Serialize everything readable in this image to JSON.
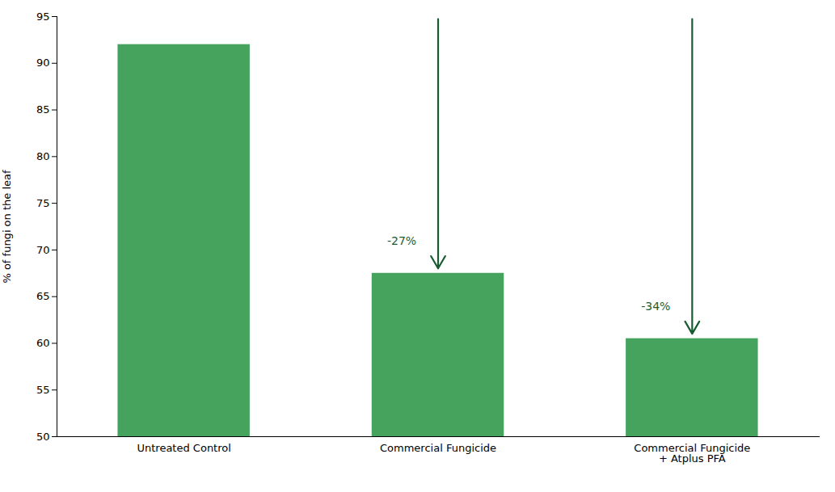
{
  "chart_data": {
    "type": "bar",
    "categories": [
      "Untreated Control",
      "Commercial Fungicide",
      "Commercial Fungicide\n+ Atplus PFA"
    ],
    "values": [
      92.0,
      67.5,
      60.5
    ],
    "color": "#45a35e",
    "ylim": [
      50,
      95
    ],
    "yticks": [
      50,
      55,
      60,
      65,
      70,
      75,
      80,
      85,
      90,
      95
    ],
    "ylabel": "% of fungi on the leaf",
    "grid": false,
    "annotations": [
      {
        "text": "-27%",
        "category": "Commercial Fungicide",
        "color": "#1a5c32"
      },
      {
        "text": "-34%",
        "category": "Commercial Fungicide\n+ Atplus PFA",
        "color": "#1a5c32"
      }
    ]
  }
}
